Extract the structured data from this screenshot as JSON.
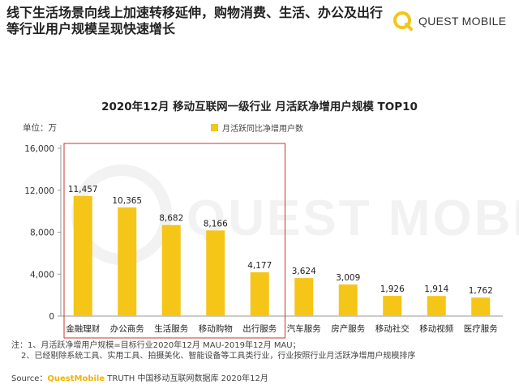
{
  "header": {
    "headline": "线下生活场景向线上加速转移延伸，购物消费、生活、办公及出行等行业用户规模呈现快速增长",
    "logo_text": "QUEST MOBILE"
  },
  "watermark_text": "QUEST MOBILE",
  "chart_data": {
    "type": "bar",
    "title": "2020年12月 移动互联网一级行业 月活跃净增用户规模 TOP10",
    "unit_label": "单位：万",
    "categories": [
      "金融理财",
      "办公商务",
      "生活服务",
      "移动购物",
      "出行服务",
      "汽车服务",
      "房产服务",
      "移动社交",
      "移动视频",
      "医疗服务"
    ],
    "series": [
      {
        "name": "月活跃同比净增用户数",
        "values": [
          11457,
          10365,
          8682,
          8166,
          4177,
          3624,
          3009,
          1926,
          1914,
          1762
        ],
        "labels": [
          "11,457",
          "10,365",
          "8,682",
          "8,166",
          "4,177",
          "3,624",
          "3,009",
          "1,926",
          "1,914",
          "1,762"
        ]
      }
    ],
    "ylim": [
      0,
      16000
    ],
    "yticks": [
      0,
      4000,
      8000,
      12000,
      16000
    ],
    "ytick_labels": [
      "0",
      "4,000",
      "8,000",
      "12,000",
      "16,000"
    ],
    "highlight_count": 5,
    "colors": {
      "bar": "#f5c518",
      "highlight_box": "#c0392b",
      "axis": "#999999"
    },
    "legend_position": "top-center",
    "grid": false
  },
  "notes": {
    "line1": "注：1、月活跃净增用户规模=目标行业2020年12月 MAU-2019年12月 MAU；",
    "line2": "2、已经剔除系统工具、实用工具、拍摄美化、智能设备等工具类行业，行业按照行业月活跃净增用户规模排序"
  },
  "source": {
    "prefix": "Source：",
    "brand": "QuestMobile",
    "suffix": " TRUTH 中国移动互联网数据库 2020年12月"
  }
}
